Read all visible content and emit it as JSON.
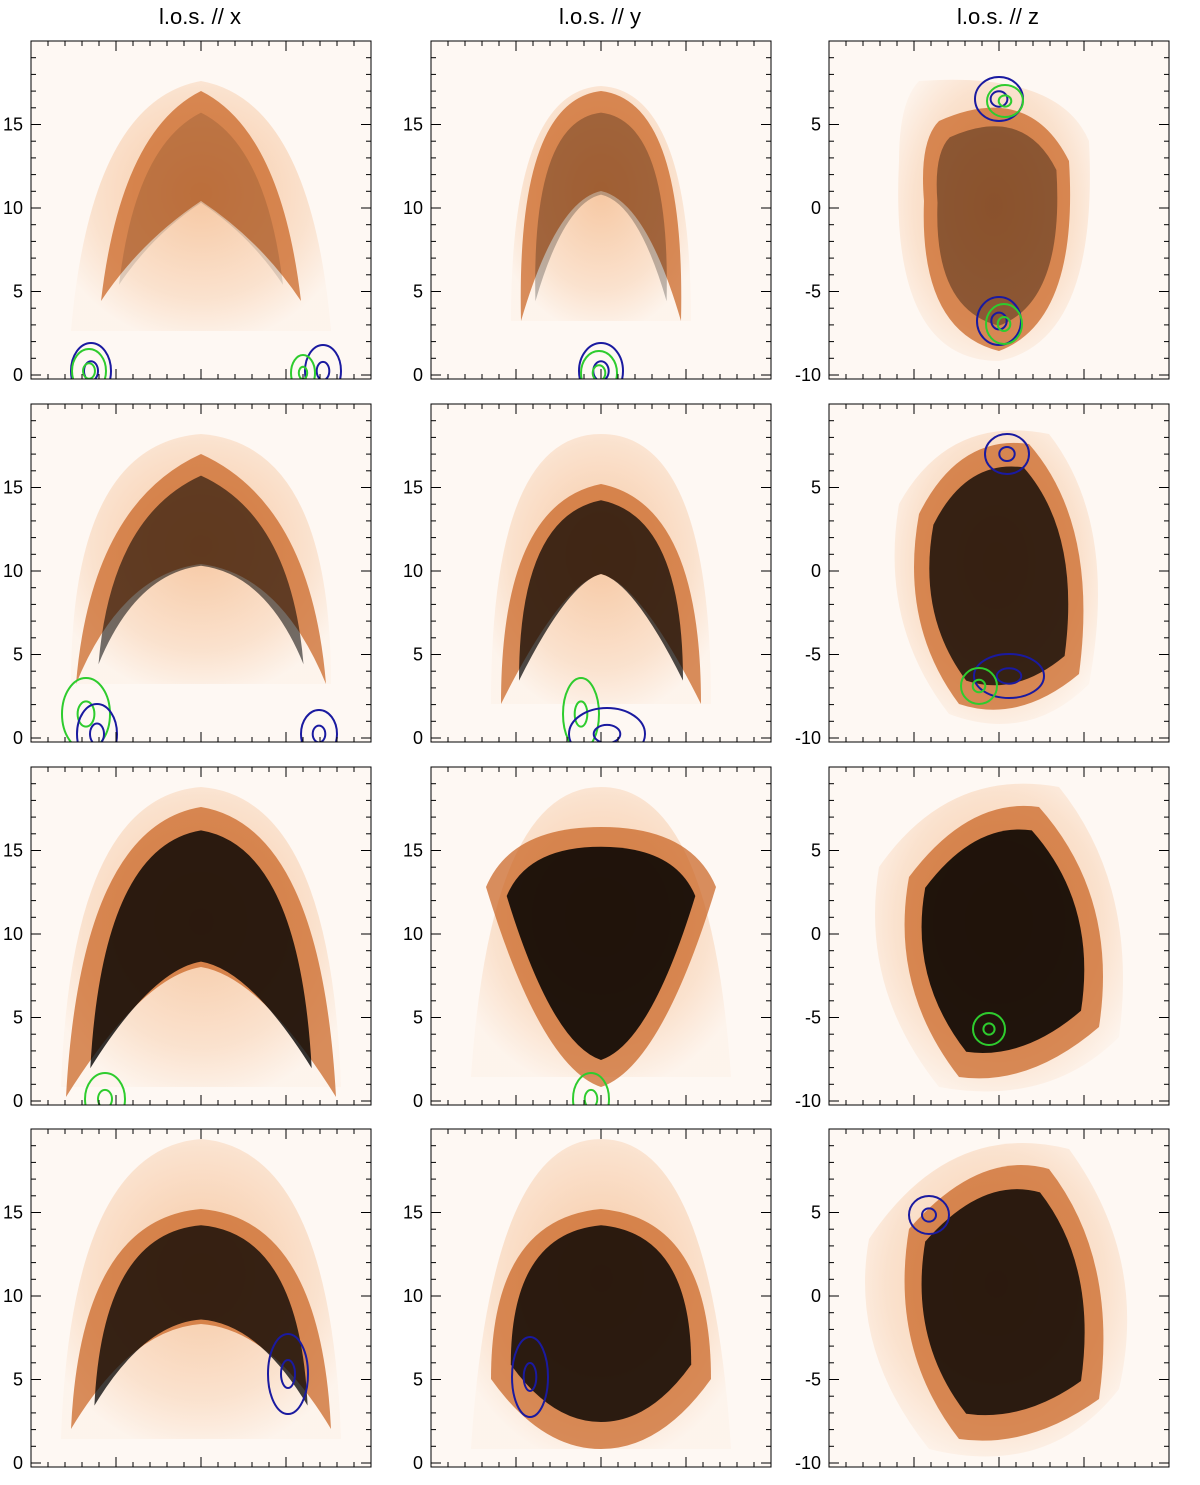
{
  "column_titles": [
    "l.o.s. // x",
    "l.o.s. // y",
    "l.o.s. // z"
  ],
  "colors": {
    "colormap_low": "#ffffff",
    "colormap_mid": "#f0a060",
    "colormap_high": "#000000",
    "contour_blue": "#1a1aa0",
    "contour_green": "#2ecc2e"
  },
  "chart_data": [
    {
      "type": "heatmap",
      "panel": "row1-col1",
      "ylim": [
        0,
        20
      ],
      "yticks": [
        0,
        5,
        10,
        15
      ]
    },
    {
      "type": "heatmap",
      "panel": "row1-col2",
      "ylim": [
        0,
        20
      ],
      "yticks": [
        0,
        5,
        10,
        15
      ]
    },
    {
      "type": "heatmap",
      "panel": "row1-col3",
      "ylim": [
        -10,
        10
      ],
      "yticks": [
        -10,
        -5,
        0,
        5
      ]
    },
    {
      "type": "heatmap",
      "panel": "row2-col1",
      "ylim": [
        0,
        20
      ],
      "yticks": [
        0,
        5,
        10,
        15
      ]
    },
    {
      "type": "heatmap",
      "panel": "row2-col2",
      "ylim": [
        0,
        20
      ],
      "yticks": [
        0,
        5,
        10,
        15
      ]
    },
    {
      "type": "heatmap",
      "panel": "row2-col3",
      "ylim": [
        -10,
        10
      ],
      "yticks": [
        -10,
        -5,
        0,
        5
      ]
    },
    {
      "type": "heatmap",
      "panel": "row3-col1",
      "ylim": [
        0,
        20
      ],
      "yticks": [
        0,
        5,
        10,
        15
      ]
    },
    {
      "type": "heatmap",
      "panel": "row3-col2",
      "ylim": [
        0,
        20
      ],
      "yticks": [
        0,
        5,
        10,
        15
      ]
    },
    {
      "type": "heatmap",
      "panel": "row3-col3",
      "ylim": [
        -10,
        10
      ],
      "yticks": [
        -10,
        -5,
        0,
        5
      ]
    },
    {
      "type": "heatmap",
      "panel": "row4-col1",
      "ylim": [
        0,
        20
      ],
      "yticks": [
        0,
        5,
        10,
        15
      ]
    },
    {
      "type": "heatmap",
      "panel": "row4-col2",
      "ylim": [
        0,
        20
      ],
      "yticks": [
        0,
        5,
        10,
        15
      ]
    },
    {
      "type": "heatmap",
      "panel": "row4-col3",
      "ylim": [
        -10,
        10
      ],
      "yticks": [
        -10,
        -5,
        0,
        5
      ]
    }
  ]
}
